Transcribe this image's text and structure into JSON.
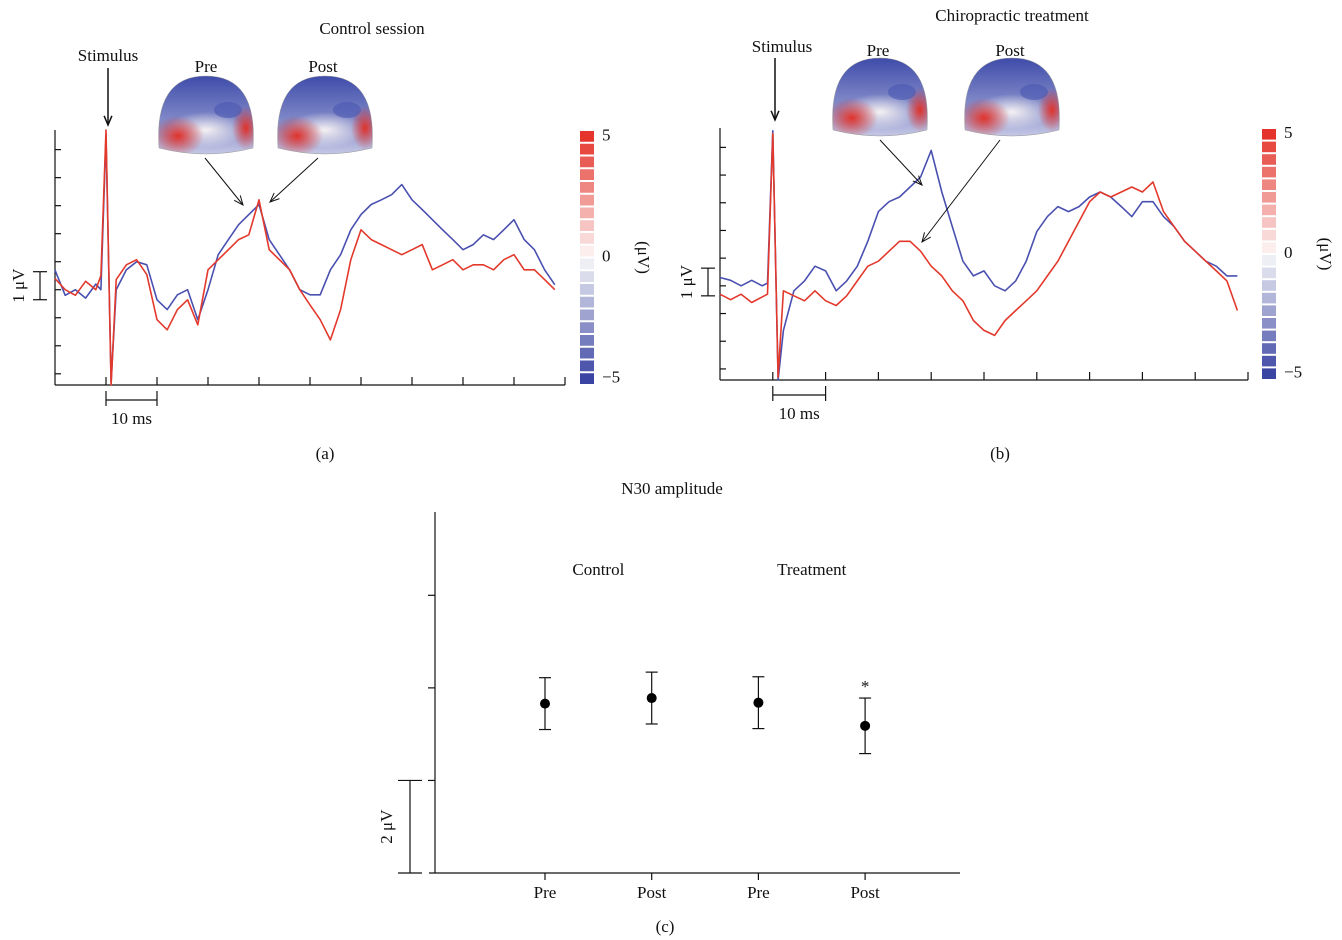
{
  "chart_data": [
    {
      "type": "line",
      "title": "Control session",
      "panel_label": "(a)",
      "stimulus_label": "Stimulus",
      "maps": [
        "Pre",
        "Post"
      ],
      "x": [
        -10,
        -8,
        -6,
        -4,
        -2,
        -1,
        0,
        1,
        2,
        4,
        6,
        8,
        10,
        12,
        14,
        16,
        18,
        20,
        22,
        24,
        26,
        28,
        30,
        32,
        34,
        36,
        38,
        40,
        42,
        44,
        46,
        48,
        50,
        52,
        54,
        56,
        58,
        60,
        62,
        64,
        66,
        68,
        70,
        72,
        74,
        76,
        78,
        80,
        82,
        84,
        86,
        88
      ],
      "series": [
        {
          "color": "#4a50b0",
          "values": [
            0.7,
            -0.2,
            0,
            -0.3,
            0.2,
            0,
            5.5,
            -3.3,
            0,
            0.71,
            1,
            0.89,
            -0.36,
            -0.71,
            -0.18,
            0,
            -1.07,
            0,
            1.25,
            1.79,
            2.32,
            2.68,
            3.04,
            1.79,
            1.25,
            0.71,
            0,
            -0.18,
            -0.18,
            0.71,
            1.25,
            2.14,
            2.68,
            3.04,
            3.21,
            3.39,
            3.75,
            3.21,
            2.86,
            2.5,
            2.14,
            1.79,
            1.43,
            1.61,
            1.96,
            1.79,
            2.14,
            2.5,
            1.79,
            1.43,
            0.71,
            0.18
          ]
        },
        {
          "color": "#e3392c",
          "values": [
            0.4,
            0,
            -0.2,
            0.3,
            0,
            0.5,
            5.7,
            -3.4,
            0.36,
            0.89,
            1.07,
            0.54,
            -1.07,
            -1.43,
            -0.71,
            -0.36,
            -1.25,
            0.71,
            1.07,
            1.43,
            1.79,
            1.96,
            3.21,
            1.43,
            1.07,
            0.71,
            0,
            -0.54,
            -1.07,
            -1.79,
            -0.71,
            1.07,
            2.14,
            1.79,
            1.61,
            1.43,
            1.25,
            1.43,
            1.61,
            0.71,
            0.89,
            1.07,
            0.71,
            0.89,
            0.89,
            0.71,
            1.07,
            1.25,
            0.71,
            0.71,
            0.36,
            0
          ]
        }
      ],
      "xlim": [
        -10,
        90
      ],
      "xticks": [
        0,
        10,
        20,
        30,
        40,
        50,
        60,
        70,
        80,
        90
      ],
      "ylim": [
        -3.4,
        5.7
      ],
      "yticks": [
        -3,
        -2,
        -1,
        0,
        1,
        2,
        3,
        4,
        5
      ],
      "scale_bars": {
        "x": {
          "value": 10,
          "label": "10 ms"
        },
        "y": {
          "value": 1,
          "label": "1 μV"
        }
      },
      "colorbar": {
        "lim": [
          -5,
          5
        ],
        "ticks": [
          5,
          0,
          {
            "value": -5,
            "label": "−5"
          }
        ],
        "label": "(μV)"
      }
    },
    {
      "type": "line",
      "title": "Chiropractic treatment",
      "panel_label": "(b)",
      "stimulus_label": "Stimulus",
      "maps": [
        "Pre",
        "Post"
      ],
      "x": [
        -10,
        -8,
        -6,
        -4,
        -2,
        -1,
        0,
        1,
        2,
        4,
        6,
        8,
        10,
        12,
        14,
        16,
        18,
        20,
        22,
        24,
        26,
        28,
        30,
        32,
        34,
        36,
        38,
        40,
        42,
        44,
        46,
        48,
        50,
        52,
        54,
        56,
        58,
        60,
        62,
        64,
        66,
        68,
        70,
        72,
        74,
        76,
        78,
        80,
        82,
        84,
        86,
        88
      ],
      "series": [
        {
          "color": "#4a50b0",
          "values": [
            0.3,
            0.2,
            0,
            0.2,
            0,
            0.1,
            5.6,
            -3.4,
            -1.61,
            -0.18,
            0.18,
            0.71,
            0.54,
            -0.18,
            0.18,
            0.71,
            1.61,
            2.68,
            3.04,
            3.21,
            3.57,
            3.93,
            4.89,
            3.39,
            2.14,
            0.89,
            0.36,
            0.54,
            0,
            -0.18,
            0.18,
            0.89,
            1.96,
            2.5,
            2.86,
            2.68,
            2.86,
            3.21,
            3.39,
            3.21,
            2.86,
            2.5,
            3.04,
            3.04,
            2.5,
            2.14,
            1.61,
            1.25,
            0.89,
            0.71,
            0.36,
            0.36
          ]
        },
        {
          "color": "#e3392c",
          "values": [
            -0.3,
            -0.5,
            -0.3,
            -0.6,
            -0.4,
            -0.3,
            5.5,
            -3.3,
            -0.18,
            -0.36,
            -0.54,
            -0.18,
            -0.54,
            -0.71,
            -0.36,
            0.18,
            0.71,
            0.89,
            1.25,
            1.61,
            1.61,
            1.25,
            0.71,
            0.36,
            -0.18,
            -0.54,
            -1.25,
            -1.61,
            -1.79,
            -1.25,
            -0.89,
            -0.54,
            -0.18,
            0.36,
            0.89,
            1.61,
            2.32,
            3.04,
            3.39,
            3.21,
            3.39,
            3.57,
            3.39,
            3.75,
            2.68,
            2.14,
            1.61,
            1.25,
            0.89,
            0.54,
            0.18,
            -0.89
          ]
        }
      ],
      "xlim": [
        -10,
        90
      ],
      "xticks": [
        0,
        10,
        20,
        30,
        40,
        50,
        60,
        70,
        80,
        90
      ],
      "ylim": [
        -3.4,
        5.7
      ],
      "yticks": [
        -3,
        -2,
        -1,
        0,
        1,
        2,
        3,
        4,
        5
      ],
      "scale_bars": {
        "x": {
          "value": 10,
          "label": "10 ms"
        },
        "y": {
          "value": 1,
          "label": "1 μV"
        }
      },
      "colorbar": {
        "lim": [
          -5,
          5
        ],
        "ticks": [
          5,
          0,
          {
            "value": -5,
            "label": "−5"
          }
        ],
        "label": "(μV)"
      }
    },
    {
      "type": "errorbar",
      "title": "N30 amplitude",
      "panel_label": "(c)",
      "categories": [
        "Pre",
        "Post",
        "Pre",
        "Post"
      ],
      "groups": [
        "Control",
        "Treatment"
      ],
      "values": [
        3.66,
        3.78,
        3.68,
        3.18
      ],
      "errors": [
        0.56,
        0.56,
        0.56,
        0.6
      ],
      "markers": [
        null,
        null,
        null,
        "*"
      ],
      "color": "#000000",
      "ylim": [
        0,
        7.8
      ],
      "yticks": [
        2,
        4,
        6
      ],
      "scale_bar": {
        "value": 2,
        "label": "2 μV"
      }
    }
  ]
}
